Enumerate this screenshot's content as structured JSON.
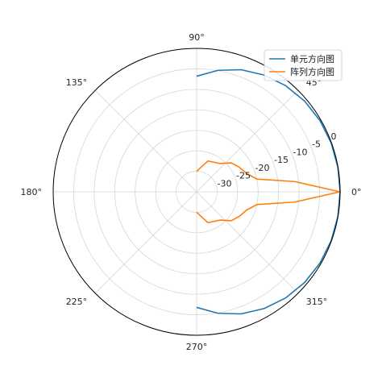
{
  "chart_data": {
    "type": "polar-line",
    "title": "",
    "angle_unit": "degrees",
    "angle_ticks": [
      "0°",
      "45°",
      "90°",
      "135°",
      "180°",
      "225°",
      "270°",
      "315°"
    ],
    "radial_ticks": [
      "-30",
      "-25",
      "-20",
      "-15",
      "-10",
      "-5",
      "0"
    ],
    "radial_tick_values": [
      -30,
      -25,
      -20,
      -15,
      -10,
      -5,
      0
    ],
    "rlim": [
      -35,
      0
    ],
    "grid": true,
    "legend_position": "top-right",
    "series": [
      {
        "name": "单元方向图",
        "color": "#1f77b4",
        "theta": [
          -90,
          -80,
          -70,
          -60,
          -50,
          -40,
          -30,
          -20,
          -10,
          0,
          10,
          20,
          30,
          40,
          50,
          60,
          70,
          80,
          90
        ],
        "r": [
          -6.8,
          -4.9,
          -3.3,
          -2.1,
          -1.2,
          -0.6,
          -0.25,
          -0.08,
          -0.02,
          0,
          -0.02,
          -0.08,
          -0.25,
          -0.6,
          -1.2,
          -2.1,
          -3.3,
          -4.9,
          -6.8
        ]
      },
      {
        "name": "阵列方向图",
        "color": "#ff7f0e",
        "theta": [
          -90,
          -70,
          -50,
          -40,
          -30,
          -20,
          -12,
          -6,
          0,
          6,
          12,
          20,
          30,
          40,
          50,
          70,
          90
        ],
        "r": [
          -30,
          -27,
          -26,
          -24,
          -23,
          -22,
          -20,
          -11,
          0,
          -11,
          -20,
          -22,
          -23,
          -24,
          -26,
          -27,
          -30
        ]
      }
    ]
  }
}
